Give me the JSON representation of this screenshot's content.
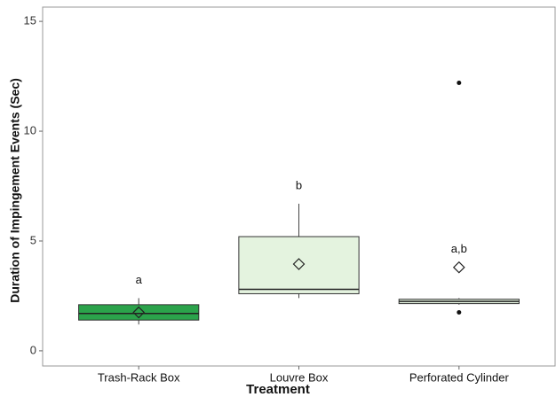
{
  "chart_data": {
    "type": "box",
    "x_label": "Treatment",
    "y_label": "Duration of Impingement Events (Sec)",
    "categories": [
      "Trash-Rack Box",
      "Louvre Box",
      "Perforated Cylinder"
    ],
    "boxes": [
      {
        "whisker_low": 1.2,
        "q1": 1.4,
        "median": 1.7,
        "q3": 2.1,
        "whisker_high": 2.4,
        "mean": 1.75,
        "outliers": [],
        "color": "#2ba34b",
        "label": "a"
      },
      {
        "whisker_low": 2.4,
        "q1": 2.6,
        "median": 2.8,
        "q3": 5.2,
        "whisker_high": 6.7,
        "mean": 3.95,
        "outliers": [],
        "color": "#e4f3df",
        "label": "b"
      },
      {
        "whisker_low": 2.1,
        "q1": 2.15,
        "median": 2.25,
        "q3": 2.35,
        "whisker_high": 2.4,
        "mean": 3.8,
        "outliers": [
          12.2,
          1.75
        ],
        "color": "#e4f3df",
        "label": "a,b"
      }
    ],
    "ylim": [
      -0.69,
      15.65
    ],
    "yticks": [
      0,
      5,
      10,
      15
    ],
    "grid": false
  }
}
